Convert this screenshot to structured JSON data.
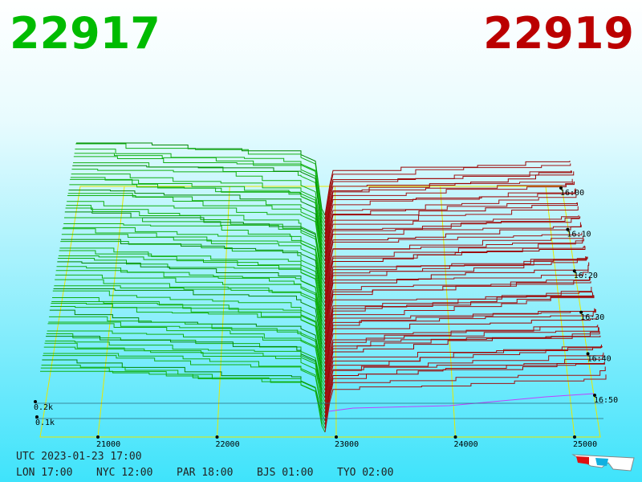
{
  "bid": "22917",
  "ask": "22919",
  "price_axis": {
    "ticks": [
      21000,
      22000,
      23000,
      24000,
      25000
    ]
  },
  "depth_axis": {
    "ticks": [
      {
        "value": 0.2,
        "label": "0.2k"
      },
      {
        "value": 0.1,
        "label": "0.1k"
      }
    ]
  },
  "time_axis": {
    "ticks": [
      "16:00",
      "16:10",
      "16:20",
      "16:30",
      "16:40",
      "16:50"
    ]
  },
  "footer": {
    "utc": "UTC 2023-01-23 17:00",
    "clocks": [
      "LON 17:00",
      "NYC 12:00",
      "PAR 18:00",
      "BJS 01:00",
      "TYO 02:00"
    ]
  }
}
